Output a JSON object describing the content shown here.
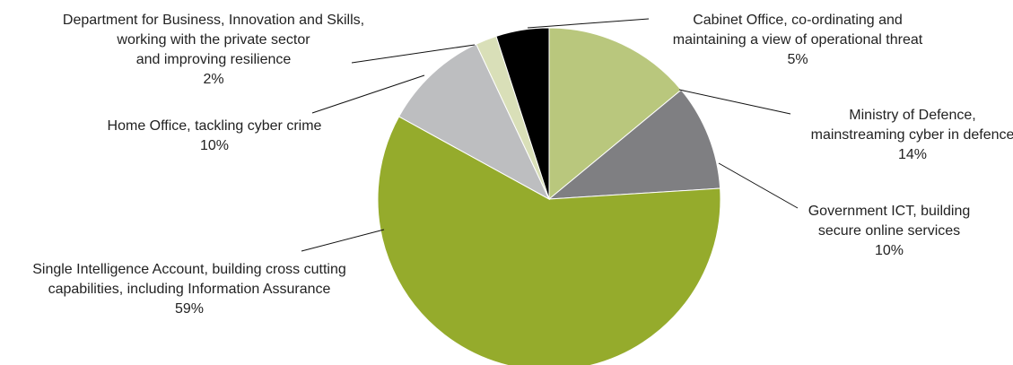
{
  "chart_data": {
    "type": "pie",
    "start_angle_deg": 0,
    "direction": "clockwise",
    "slices": [
      {
        "label_lines": [
          "Ministry of Defence,",
          "mainstreaming cyber in defence",
          "14%"
        ],
        "value": 14,
        "color": "#b9c77d"
      },
      {
        "label_lines": [
          "Government ICT, building",
          "secure online services",
          "10%"
        ],
        "value": 10,
        "color": "#7f7f82"
      },
      {
        "label_lines": [
          "Single Intelligence Account, building cross cutting",
          "capabilities, including Information Assurance",
          "59%"
        ],
        "value": 59,
        "color": "#95ab2c"
      },
      {
        "label_lines": [
          "Home Office, tackling cyber crime",
          "10%"
        ],
        "value": 10,
        "color": "#bdbec0"
      },
      {
        "label_lines": [
          "Department for Business, Innovation and Skills,",
          "working with the private sector",
          "and improving resilience",
          "2%"
        ],
        "value": 2,
        "color": "#d9dfb8"
      },
      {
        "label_lines": [
          "Cabinet Office, co-ordinating and",
          "maintaining a view of operational threat",
          "5%"
        ],
        "value": 5,
        "color": "#000000"
      }
    ]
  }
}
